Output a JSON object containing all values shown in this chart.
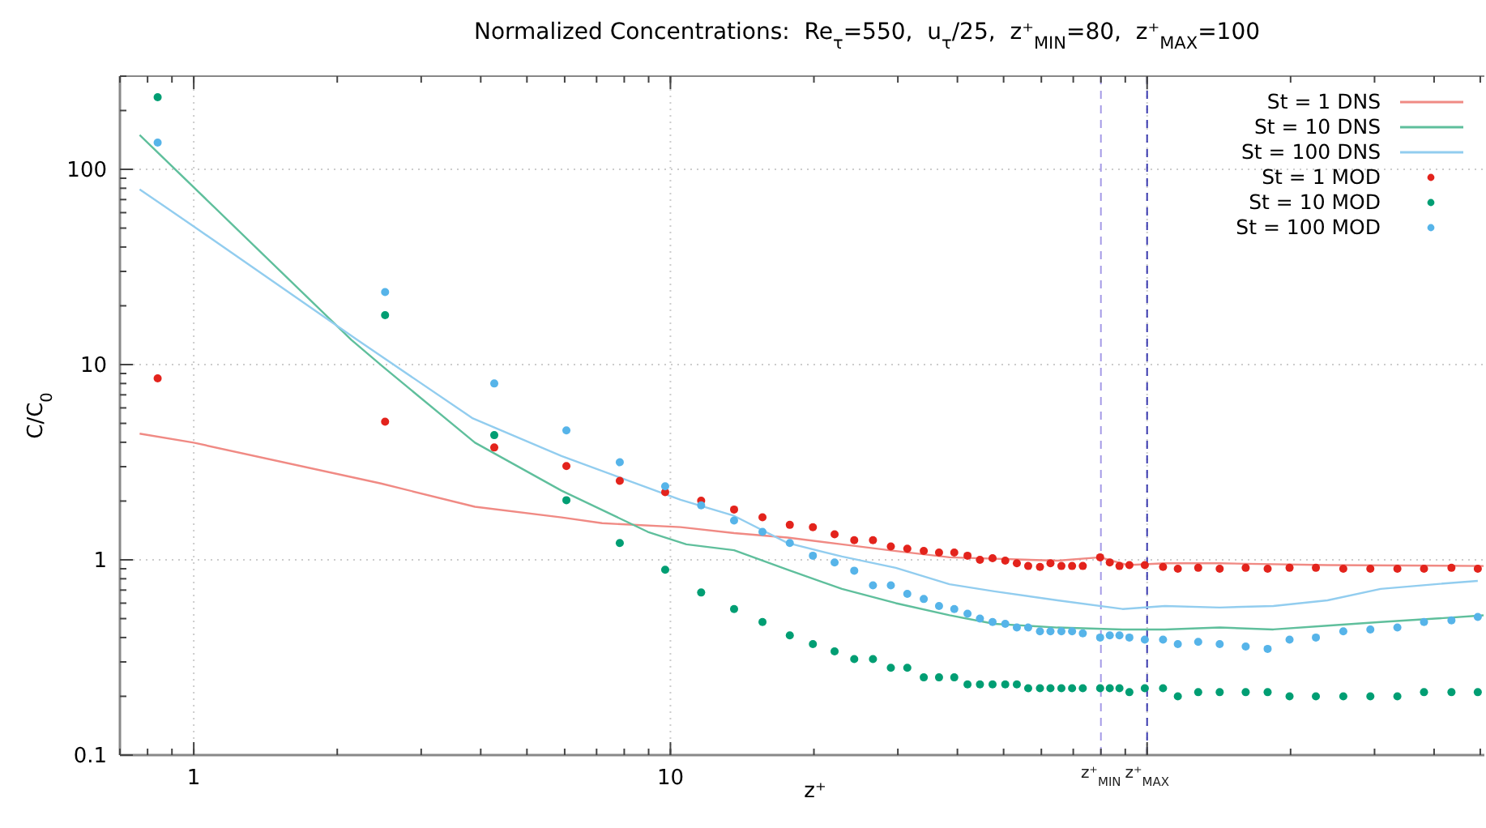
{
  "chart_data": {
    "type": "line",
    "title": "Normalized Concentrations:  Re$_{τ}$=550,  u$_{τ}$/25,  z⁺$_{MIN}$=80,  z⁺$_{MAX}$=100",
    "xlabel": "z⁺",
    "ylabel": "C/C$_{0}$",
    "log": "xy",
    "grid": true,
    "legend": "top right",
    "xlim": [
      0.7,
      510
    ],
    "ylim": [
      0.1,
      300
    ],
    "xticks": [
      1,
      10,
      {
        "value": 100,
        "label": null
      }
    ],
    "yticks": [
      0.1,
      1,
      10,
      100
    ],
    "ref_lines": [
      {
        "axis": "x",
        "value": 80,
        "label": "z⁺$_{MIN}$",
        "color": "#a59be6",
        "line_style": "dashed"
      },
      {
        "axis": "x",
        "value": 100,
        "label": "z⁺$_{MAX}$",
        "color": "#3b3bb0",
        "line_style": "dashed"
      }
    ],
    "series": [
      {
        "name": "St = 1 DNS",
        "color": "#f08a84",
        "x": [
          0.77,
          1,
          2.47,
          3.89,
          5.91,
          7.19,
          10.5,
          13.6,
          17.6,
          22.9,
          29.7,
          38.5,
          64.9,
          79.7,
          91,
          109,
          142,
          239,
          508
        ],
        "values": [
          4.43,
          3.98,
          2.46,
          1.87,
          1.65,
          1.54,
          1.47,
          1.37,
          1.3,
          1.2,
          1.11,
          1.03,
          0.99,
          1.03,
          0.94,
          0.96,
          0.96,
          0.94,
          0.93
        ]
      },
      {
        "name": "St = 10 DNS",
        "color": "#5fbf9c",
        "x": [
          0.77,
          2.14,
          2.5,
          3.89,
          5.91,
          7.87,
          8.97,
          10.8,
          13.6,
          17.6,
          22.9,
          29.7,
          38.5,
          47.8,
          64.9,
          88.8,
          109,
          142,
          184,
          239,
          309,
          402,
          508
        ],
        "values": [
          150,
          13.4,
          9.7,
          3.98,
          2.26,
          1.62,
          1.39,
          1.2,
          1.12,
          0.89,
          0.71,
          0.6,
          0.52,
          0.47,
          0.45,
          0.44,
          0.44,
          0.45,
          0.44,
          0.46,
          0.48,
          0.5,
          0.52
        ]
      },
      {
        "name": "St = 100 DNS",
        "color": "#92cdef",
        "x": [
          0.77,
          1,
          2.2,
          3.85,
          5.91,
          7.87,
          10.5,
          13.6,
          17.6,
          22.9,
          29.7,
          38.5,
          47.8,
          64.9,
          88.8,
          109,
          142,
          184,
          239,
          309,
          402,
          494
        ],
        "values": [
          79,
          51,
          13.4,
          5.3,
          3.4,
          2.63,
          2.03,
          1.68,
          1.22,
          1.04,
          0.91,
          0.75,
          0.69,
          0.62,
          0.56,
          0.58,
          0.57,
          0.58,
          0.62,
          0.71,
          0.75,
          0.78
        ]
      },
      {
        "name": "St = 1 MOD",
        "type": "scatter",
        "marker": "circle",
        "color": "#e3231c",
        "x": [
          0.84,
          2.52,
          4.27,
          6.05,
          7.83,
          9.75,
          11.6,
          13.6,
          15.6,
          17.8,
          19.9,
          22.1,
          24.3,
          26.6,
          29,
          31.4,
          34,
          36.6,
          39.4,
          42,
          44.6,
          47.4,
          50.4,
          53.3,
          56.3,
          59.6,
          62.7,
          66.1,
          69.6,
          73.3,
          79.7,
          83.5,
          87.5,
          91.8,
          98.9,
          108,
          116,
          128,
          142,
          161,
          179,
          199,
          226,
          258,
          294,
          335,
          381,
          435,
          494
        ],
        "values": [
          8.5,
          5.1,
          3.76,
          3.02,
          2.54,
          2.22,
          2.01,
          1.81,
          1.65,
          1.51,
          1.47,
          1.35,
          1.26,
          1.26,
          1.17,
          1.14,
          1.11,
          1.09,
          1.09,
          1.05,
          1,
          1.02,
          0.99,
          0.96,
          0.93,
          0.92,
          0.96,
          0.93,
          0.93,
          0.93,
          1.03,
          0.97,
          0.93,
          0.94,
          0.94,
          0.92,
          0.9,
          0.91,
          0.9,
          0.91,
          0.9,
          0.91,
          0.91,
          0.9,
          0.9,
          0.9,
          0.9,
          0.91,
          0.9
        ]
      },
      {
        "name": "St = 10 MOD",
        "type": "scatter",
        "marker": "circle",
        "color": "#009e73",
        "x": [
          0.84,
          2.52,
          4.27,
          6.05,
          7.83,
          9.75,
          11.6,
          13.6,
          15.6,
          17.8,
          19.9,
          22.1,
          24.3,
          26.6,
          29,
          31.4,
          34,
          36.6,
          39.4,
          42,
          44.6,
          47.4,
          50.4,
          53.3,
          56.3,
          59.6,
          62.7,
          66.1,
          69.6,
          73.3,
          79.7,
          83.5,
          87.5,
          91.8,
          98.9,
          108,
          116,
          128,
          142,
          161,
          179,
          199,
          226,
          258,
          294,
          335,
          381,
          435,
          494
        ],
        "values": [
          234,
          17.9,
          4.35,
          2.02,
          1.22,
          0.89,
          0.68,
          0.56,
          0.48,
          0.41,
          0.37,
          0.34,
          0.31,
          0.31,
          0.28,
          0.28,
          0.25,
          0.25,
          0.25,
          0.23,
          0.23,
          0.23,
          0.23,
          0.23,
          0.22,
          0.22,
          0.22,
          0.22,
          0.22,
          0.22,
          0.22,
          0.22,
          0.22,
          0.21,
          0.22,
          0.22,
          0.2,
          0.21,
          0.21,
          0.21,
          0.21,
          0.2,
          0.2,
          0.2,
          0.2,
          0.2,
          0.21,
          0.21,
          0.21
        ]
      },
      {
        "name": "St = 100 MOD",
        "type": "scatter",
        "marker": "circle",
        "color": "#56b4e9",
        "x": [
          0.84,
          2.52,
          4.27,
          6.05,
          7.83,
          9.75,
          11.6,
          13.6,
          15.6,
          17.8,
          19.9,
          22.1,
          24.3,
          26.6,
          29,
          31.4,
          34,
          36.6,
          39.4,
          42,
          44.6,
          47.4,
          50.4,
          53.3,
          56.3,
          59.6,
          62.7,
          66.1,
          69.6,
          73.3,
          79.7,
          83.5,
          87.5,
          91.8,
          98.9,
          108,
          116,
          128,
          142,
          161,
          179,
          199,
          226,
          258,
          294,
          335,
          381,
          435,
          494
        ],
        "values": [
          137,
          23.5,
          8,
          4.6,
          3.16,
          2.38,
          1.9,
          1.59,
          1.39,
          1.22,
          1.05,
          0.97,
          0.88,
          0.74,
          0.74,
          0.67,
          0.63,
          0.58,
          0.56,
          0.53,
          0.5,
          0.48,
          0.47,
          0.45,
          0.45,
          0.43,
          0.43,
          0.43,
          0.43,
          0.42,
          0.4,
          0.41,
          0.41,
          0.4,
          0.39,
          0.39,
          0.37,
          0.38,
          0.37,
          0.36,
          0.35,
          0.39,
          0.4,
          0.43,
          0.44,
          0.45,
          0.48,
          0.49,
          0.51
        ]
      }
    ]
  }
}
